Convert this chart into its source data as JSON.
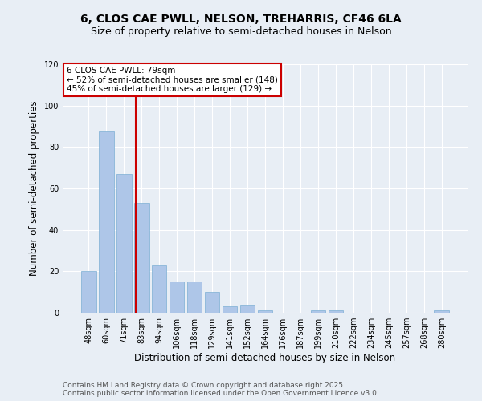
{
  "title1": "6, CLOS CAE PWLL, NELSON, TREHARRIS, CF46 6LA",
  "title2": "Size of property relative to semi-detached houses in Nelson",
  "xlabel": "Distribution of semi-detached houses by size in Nelson",
  "ylabel": "Number of semi-detached properties",
  "categories": [
    "48sqm",
    "60sqm",
    "71sqm",
    "83sqm",
    "94sqm",
    "106sqm",
    "118sqm",
    "129sqm",
    "141sqm",
    "152sqm",
    "164sqm",
    "176sqm",
    "187sqm",
    "199sqm",
    "210sqm",
    "222sqm",
    "234sqm",
    "245sqm",
    "257sqm",
    "268sqm",
    "280sqm"
  ],
  "values": [
    20,
    88,
    67,
    53,
    23,
    15,
    15,
    10,
    3,
    4,
    1,
    0,
    0,
    1,
    1,
    0,
    0,
    0,
    0,
    0,
    1
  ],
  "bar_color": "#aec6e8",
  "bar_edge_color": "#7bafd4",
  "ylim": [
    0,
    120
  ],
  "yticks": [
    0,
    20,
    40,
    60,
    80,
    100,
    120
  ],
  "vline_x": 2.67,
  "vline_color": "#cc0000",
  "annotation_title": "6 CLOS CAE PWLL: 79sqm",
  "annotation_line1": "← 52% of semi-detached houses are smaller (148)",
  "annotation_line2": "45% of semi-detached houses are larger (129) →",
  "annotation_box_color": "#cc0000",
  "footer1": "Contains HM Land Registry data © Crown copyright and database right 2025.",
  "footer2": "Contains public sector information licensed under the Open Government Licence v3.0.",
  "background_color": "#e8eef5",
  "plot_bg_color": "#e8eef5",
  "title_fontsize": 10,
  "subtitle_fontsize": 9,
  "tick_fontsize": 7,
  "label_fontsize": 8.5,
  "footer_fontsize": 6.5,
  "ann_fontsize": 7.5
}
